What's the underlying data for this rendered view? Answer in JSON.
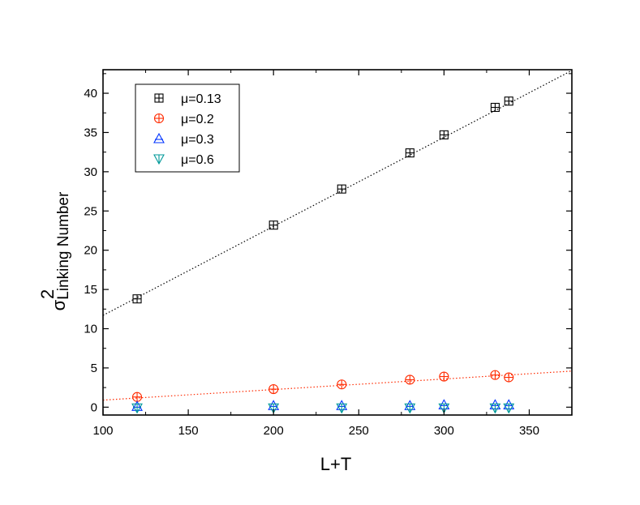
{
  "chart_data": {
    "type": "scatter",
    "xlabel": "L+T",
    "ylabel_symbol": "σ",
    "ylabel_superscript": "2",
    "ylabel_subscript": "Linking Number",
    "xlim": [
      100,
      375
    ],
    "ylim": [
      -1,
      43
    ],
    "xticks": [
      100,
      150,
      200,
      250,
      300,
      350
    ],
    "yticks": [
      0,
      5,
      10,
      15,
      20,
      25,
      30,
      35,
      40
    ],
    "grid": false,
    "legend_position": "top-left",
    "series": [
      {
        "name": "μ=0.13",
        "marker": "square-plus",
        "color": "#000000",
        "x": [
          120,
          200,
          240,
          280,
          300,
          330,
          338
        ],
        "y": [
          13.8,
          23.2,
          27.8,
          32.4,
          34.7,
          38.2,
          39.0
        ],
        "fit": {
          "x": [
            100,
            375
          ],
          "y": [
            11.7,
            42.9
          ],
          "color": "#000000"
        }
      },
      {
        "name": "μ=0.2",
        "marker": "circle-plus",
        "color": "#ff2a00",
        "x": [
          120,
          200,
          240,
          280,
          300,
          330,
          338
        ],
        "y": [
          1.3,
          2.3,
          2.9,
          3.5,
          3.9,
          4.1,
          3.8
        ],
        "fit": {
          "x": [
            100,
            375
          ],
          "y": [
            0.9,
            4.6
          ],
          "color": "#ff2a00"
        }
      },
      {
        "name": "μ=0.3",
        "marker": "triangle-up",
        "color": "#0033ff",
        "x": [
          120,
          200,
          240,
          280,
          300,
          330,
          338
        ],
        "y": [
          0.1,
          0.2,
          0.2,
          0.2,
          0.3,
          0.3,
          0.3
        ]
      },
      {
        "name": "μ=0.6",
        "marker": "triangle-down",
        "color": "#009999",
        "x": [
          120,
          200,
          240,
          280,
          300,
          330,
          338
        ],
        "y": [
          -0.1,
          -0.1,
          -0.1,
          -0.1,
          -0.1,
          -0.1,
          -0.1
        ]
      }
    ]
  }
}
